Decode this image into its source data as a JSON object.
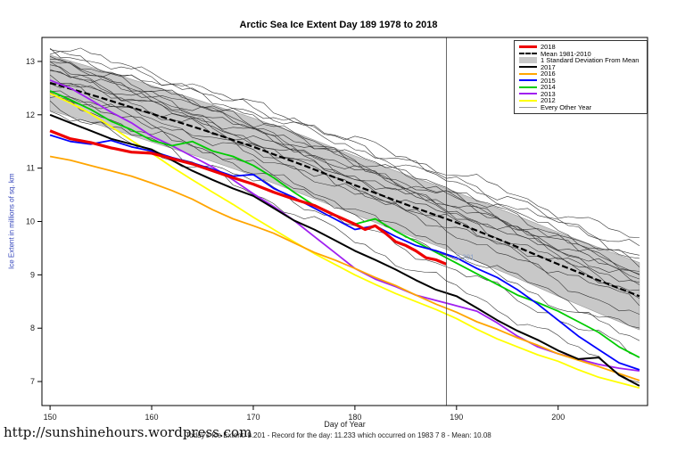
{
  "page": {
    "title": "Arctic Sea Ice Extent Day 189 1978 to 2018",
    "footer_url": "http://sunshinehours.wordpress.com",
    "caption": "Today's Ice Extent: 9.201  - Record for the day: 11.233 which occurred on 1983 7 8  - Mean: 10.08"
  },
  "chart_data": {
    "type": "line",
    "title": "Arctic Sea Ice Extent Day 189 1978 to 2018",
    "xlabel": "Day of Year",
    "ylabel": "Ice Extent in millions of sq. km",
    "xlim": [
      149.2,
      208.8
    ],
    "ylim": [
      6.55,
      13.45
    ],
    "xticks": [
      150,
      160,
      170,
      180,
      190,
      200
    ],
    "yticks": [
      7,
      8,
      9,
      10,
      11,
      12,
      13
    ],
    "grid": false,
    "legend_position": "top-right",
    "band_color": "#c8c8c8",
    "vline_x": 189,
    "annotation": {
      "text": "9.201",
      "x": 189.8,
      "y": 9.28,
      "color": "#8aa0c8"
    },
    "days": [
      150,
      152,
      154,
      156,
      158,
      160,
      162,
      164,
      166,
      168,
      170,
      172,
      174,
      176,
      178,
      180,
      182,
      184,
      186,
      188,
      190,
      192,
      194,
      196,
      198,
      200,
      202,
      204,
      206,
      208
    ],
    "mean_series": {
      "name": "Mean 1981-2010",
      "color": "#000000",
      "dashed": true,
      "x": [
        150,
        155,
        160,
        165,
        170,
        175,
        180,
        185,
        190,
        195,
        200,
        205,
        208
      ],
      "y": [
        12.6,
        12.32,
        12.02,
        11.72,
        11.4,
        11.05,
        10.68,
        10.32,
        9.98,
        9.6,
        9.2,
        8.82,
        8.6
      ],
      "std": [
        0.52,
        0.52,
        0.53,
        0.53,
        0.54,
        0.55,
        0.55,
        0.56,
        0.57,
        0.58,
        0.6,
        0.62,
        0.63
      ]
    },
    "series": [
      {
        "name": "2012",
        "color": "#ffff00",
        "width": 1.8,
        "y": [
          12.4,
          12.22,
          12.02,
          11.78,
          11.52,
          11.28,
          11.02,
          10.78,
          10.55,
          10.32,
          10.08,
          9.85,
          9.62,
          9.4,
          9.2,
          9.0,
          8.82,
          8.65,
          8.5,
          8.35,
          8.18,
          7.98,
          7.8,
          7.65,
          7.5,
          7.38,
          7.22,
          7.08,
          6.98,
          6.88
        ]
      },
      {
        "name": "2013",
        "color": "#a020f0",
        "width": 1.8,
        "y": [
          12.65,
          12.5,
          12.28,
          12.05,
          11.85,
          11.6,
          11.42,
          11.22,
          11.02,
          10.78,
          10.52,
          10.28,
          10.02,
          9.72,
          9.42,
          9.12,
          8.92,
          8.78,
          8.62,
          8.52,
          8.42,
          8.32,
          8.1,
          7.85,
          7.65,
          7.52,
          7.42,
          7.32,
          7.25,
          7.2
        ]
      },
      {
        "name": "2014",
        "color": "#00cc00",
        "width": 1.8,
        "y": [
          12.45,
          12.28,
          12.1,
          11.88,
          11.72,
          11.52,
          11.42,
          11.5,
          11.32,
          11.22,
          11.05,
          10.82,
          10.55,
          10.3,
          10.12,
          9.95,
          10.05,
          9.82,
          9.62,
          9.42,
          9.22,
          9.02,
          8.82,
          8.62,
          8.48,
          8.32,
          8.12,
          7.92,
          7.65,
          7.45
        ]
      },
      {
        "name": "2015",
        "color": "#0000ff",
        "width": 1.8,
        "y": [
          11.62,
          11.5,
          11.45,
          11.52,
          11.4,
          11.32,
          11.2,
          11.1,
          10.98,
          10.85,
          10.88,
          10.62,
          10.45,
          10.25,
          10.05,
          9.85,
          9.92,
          9.72,
          9.55,
          9.45,
          9.32,
          9.12,
          8.95,
          8.72,
          8.45,
          8.15,
          7.85,
          7.6,
          7.35,
          7.22
        ]
      },
      {
        "name": "2016",
        "color": "#ffa500",
        "width": 1.8,
        "y": [
          11.22,
          11.15,
          11.05,
          10.95,
          10.85,
          10.72,
          10.58,
          10.42,
          10.22,
          10.05,
          9.92,
          9.78,
          9.6,
          9.42,
          9.28,
          9.12,
          8.95,
          8.8,
          8.62,
          8.45,
          8.3,
          8.12,
          7.98,
          7.82,
          7.68,
          7.52,
          7.4,
          7.28,
          7.15,
          7.02
        ]
      },
      {
        "name": "2017",
        "color": "#000000",
        "width": 2,
        "y": [
          12.0,
          11.85,
          11.7,
          11.55,
          11.45,
          11.35,
          11.15,
          10.95,
          10.78,
          10.62,
          10.48,
          10.25,
          10.02,
          9.85,
          9.65,
          9.45,
          9.28,
          9.1,
          8.9,
          8.72,
          8.6,
          8.38,
          8.15,
          7.95,
          7.78,
          7.58,
          7.42,
          7.45,
          7.12,
          6.92
        ]
      },
      {
        "name": "2018",
        "color": "#ee0000",
        "width": 3.2,
        "x": [
          150,
          152,
          154,
          156,
          158,
          160,
          162,
          164,
          166,
          168,
          170,
          172,
          174,
          176,
          178,
          180,
          181,
          182,
          183,
          184,
          185,
          186,
          187,
          188,
          189
        ],
        "y": [
          11.7,
          11.55,
          11.48,
          11.38,
          11.3,
          11.28,
          11.18,
          11.08,
          10.95,
          10.82,
          10.7,
          10.55,
          10.42,
          10.3,
          10.12,
          9.95,
          9.85,
          9.92,
          9.78,
          9.62,
          9.55,
          9.45,
          9.32,
          9.28,
          9.201
        ]
      }
    ],
    "other_years": {
      "name": "Every Other Year",
      "color": "#333333",
      "lines": [
        {
          "start_offset": 0.62,
          "end_offset": 1.05,
          "seed": 1
        },
        {
          "start_offset": 0.72,
          "end_offset": 0.78,
          "seed": 2
        },
        {
          "start_offset": 0.55,
          "end_offset": 0.88,
          "seed": 3
        },
        {
          "start_offset": 0.48,
          "end_offset": 0.58,
          "seed": 4
        },
        {
          "start_offset": 0.45,
          "end_offset": 0.38,
          "seed": 5
        },
        {
          "start_offset": 0.38,
          "end_offset": 0.66,
          "seed": 6
        },
        {
          "start_offset": 0.33,
          "end_offset": 0.28,
          "seed": 7
        },
        {
          "start_offset": 0.28,
          "end_offset": 0.5,
          "seed": 8
        },
        {
          "start_offset": 0.2,
          "end_offset": 0.18,
          "seed": 9
        },
        {
          "start_offset": 0.14,
          "end_offset": 0.42,
          "seed": 10
        },
        {
          "start_offset": 0.06,
          "end_offset": 0.1,
          "seed": 11
        },
        {
          "start_offset": -0.04,
          "end_offset": 0.32,
          "seed": 12
        },
        {
          "start_offset": -0.12,
          "end_offset": -0.12,
          "seed": 13
        },
        {
          "start_offset": -0.2,
          "end_offset": 0.04,
          "seed": 14
        },
        {
          "start_offset": -0.3,
          "end_offset": -0.65,
          "seed": 15
        },
        {
          "start_offset": -0.42,
          "end_offset": -1.1,
          "seed": 16
        },
        {
          "start_offset": -0.5,
          "end_offset": -1.55,
          "seed": 17
        },
        {
          "start_offset": 0.3,
          "end_offset": -0.4,
          "seed": 18
        },
        {
          "start_offset": -0.15,
          "end_offset": -0.85,
          "seed": 19
        }
      ]
    },
    "legend": [
      {
        "label": "2018",
        "color": "#ee0000",
        "style": "thick"
      },
      {
        "label": "Mean 1981-2010",
        "color": "#000000",
        "style": "dashed"
      },
      {
        "label": "1 Standard Deviation From Mean",
        "color": "#c8c8c8",
        "style": "fill"
      },
      {
        "label": "2017",
        "color": "#000000",
        "style": "line"
      },
      {
        "label": "2016",
        "color": "#ffa500",
        "style": "line"
      },
      {
        "label": "2015",
        "color": "#0000ff",
        "style": "line"
      },
      {
        "label": "2014",
        "color": "#00cc00",
        "style": "line"
      },
      {
        "label": "2013",
        "color": "#a020f0",
        "style": "line"
      },
      {
        "label": "2012",
        "color": "#ffff00",
        "style": "line"
      },
      {
        "label": "Every Other Year",
        "color": "#999999",
        "style": "thin"
      }
    ]
  }
}
